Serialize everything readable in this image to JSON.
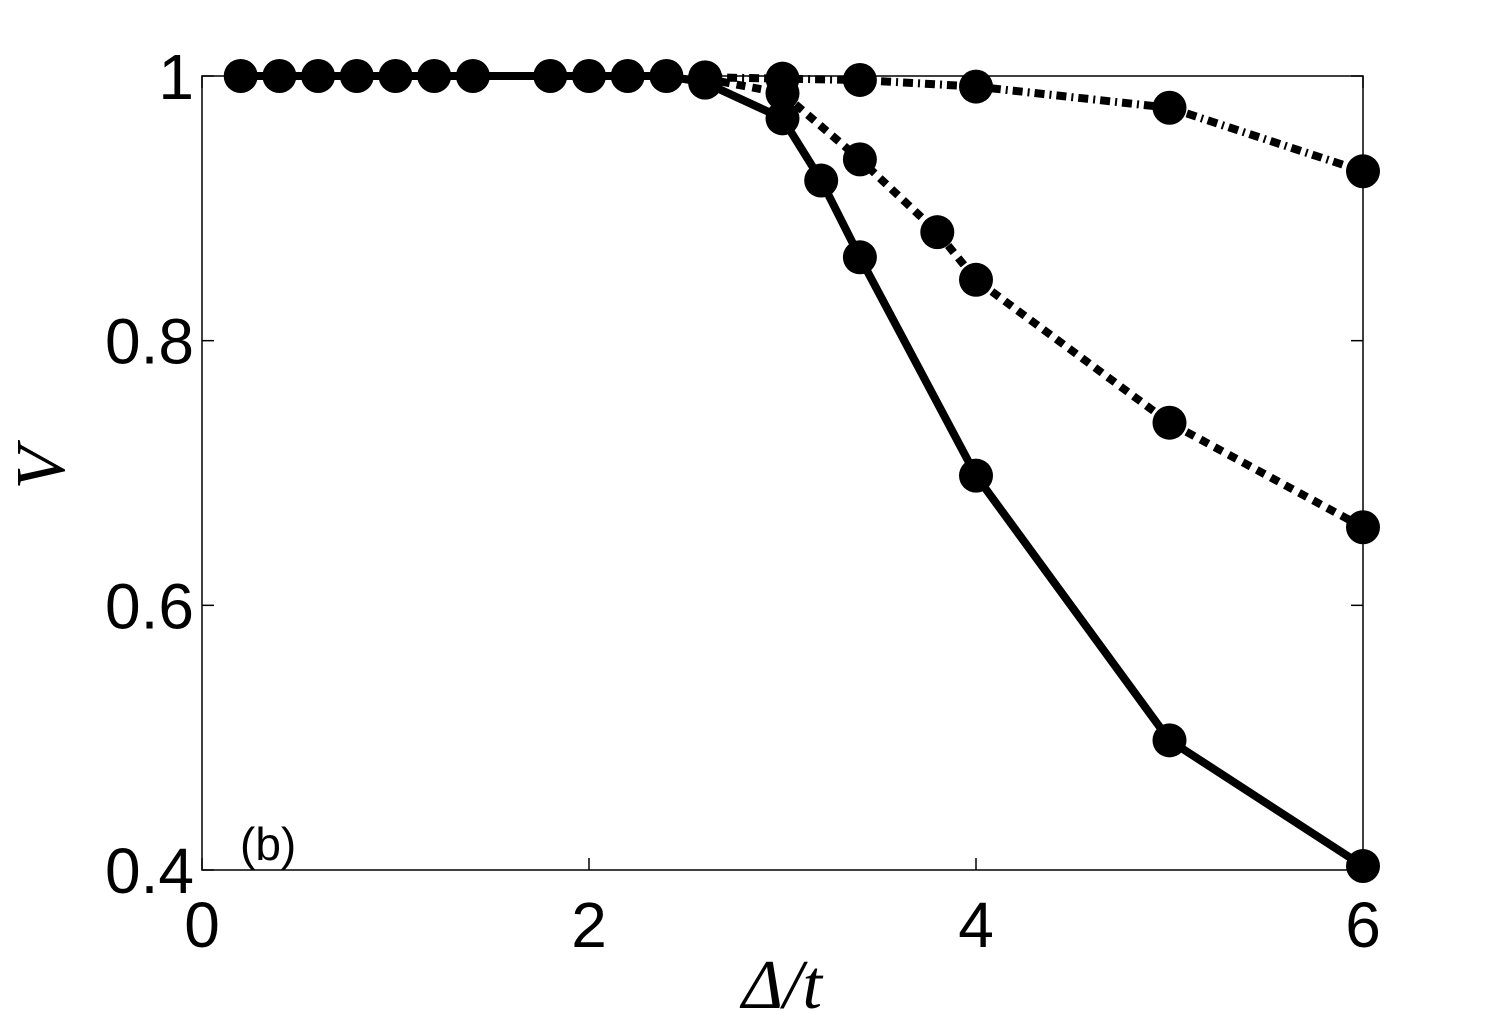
{
  "chart_data": {
    "type": "line",
    "xlabel": "Δ/t",
    "ylabel": "V",
    "annotation": "(b)",
    "xlim": [
      0,
      6
    ],
    "ylim": [
      0.4,
      1
    ],
    "xticks": [
      0,
      2,
      4,
      6
    ],
    "xtick_labels": [
      "0",
      "2",
      "4",
      "6"
    ],
    "yticks": [
      0.4,
      0.6,
      0.8,
      1
    ],
    "ytick_labels": [
      "0.4",
      "0.6",
      "0.8",
      "1"
    ],
    "grid": false,
    "series": [
      {
        "line_style": "solid",
        "color": "#000000",
        "marker": "filled-circle",
        "x": [
          0.2,
          0.4,
          0.6,
          0.8,
          1.0,
          1.2,
          1.4,
          1.8,
          2.0,
          2.2,
          2.4,
          2.6,
          3.0,
          3.2,
          3.4,
          4.0,
          5.0,
          6.0
        ],
        "y": [
          1.0,
          1.0,
          1.0,
          1.0,
          1.0,
          1.0,
          1.0,
          1.0,
          1.0,
          1.0,
          1.0,
          0.995,
          0.968,
          0.921,
          0.863,
          0.698,
          0.498,
          0.403
        ]
      },
      {
        "line_style": "dotted",
        "color": "#000000",
        "marker": "filled-circle",
        "x": [
          2.6,
          3.0,
          3.4,
          3.8,
          4.0,
          5.0,
          6.0
        ],
        "y": [
          0.998,
          0.987,
          0.937,
          0.882,
          0.846,
          0.738,
          0.659
        ]
      },
      {
        "line_style": "dash-dot",
        "color": "#000000",
        "marker": "filled-circle",
        "x": [
          2.6,
          3.0,
          3.4,
          4.0,
          5.0,
          6.0
        ],
        "y": [
          0.999,
          0.998,
          0.997,
          0.992,
          0.976,
          0.928
        ]
      }
    ]
  }
}
